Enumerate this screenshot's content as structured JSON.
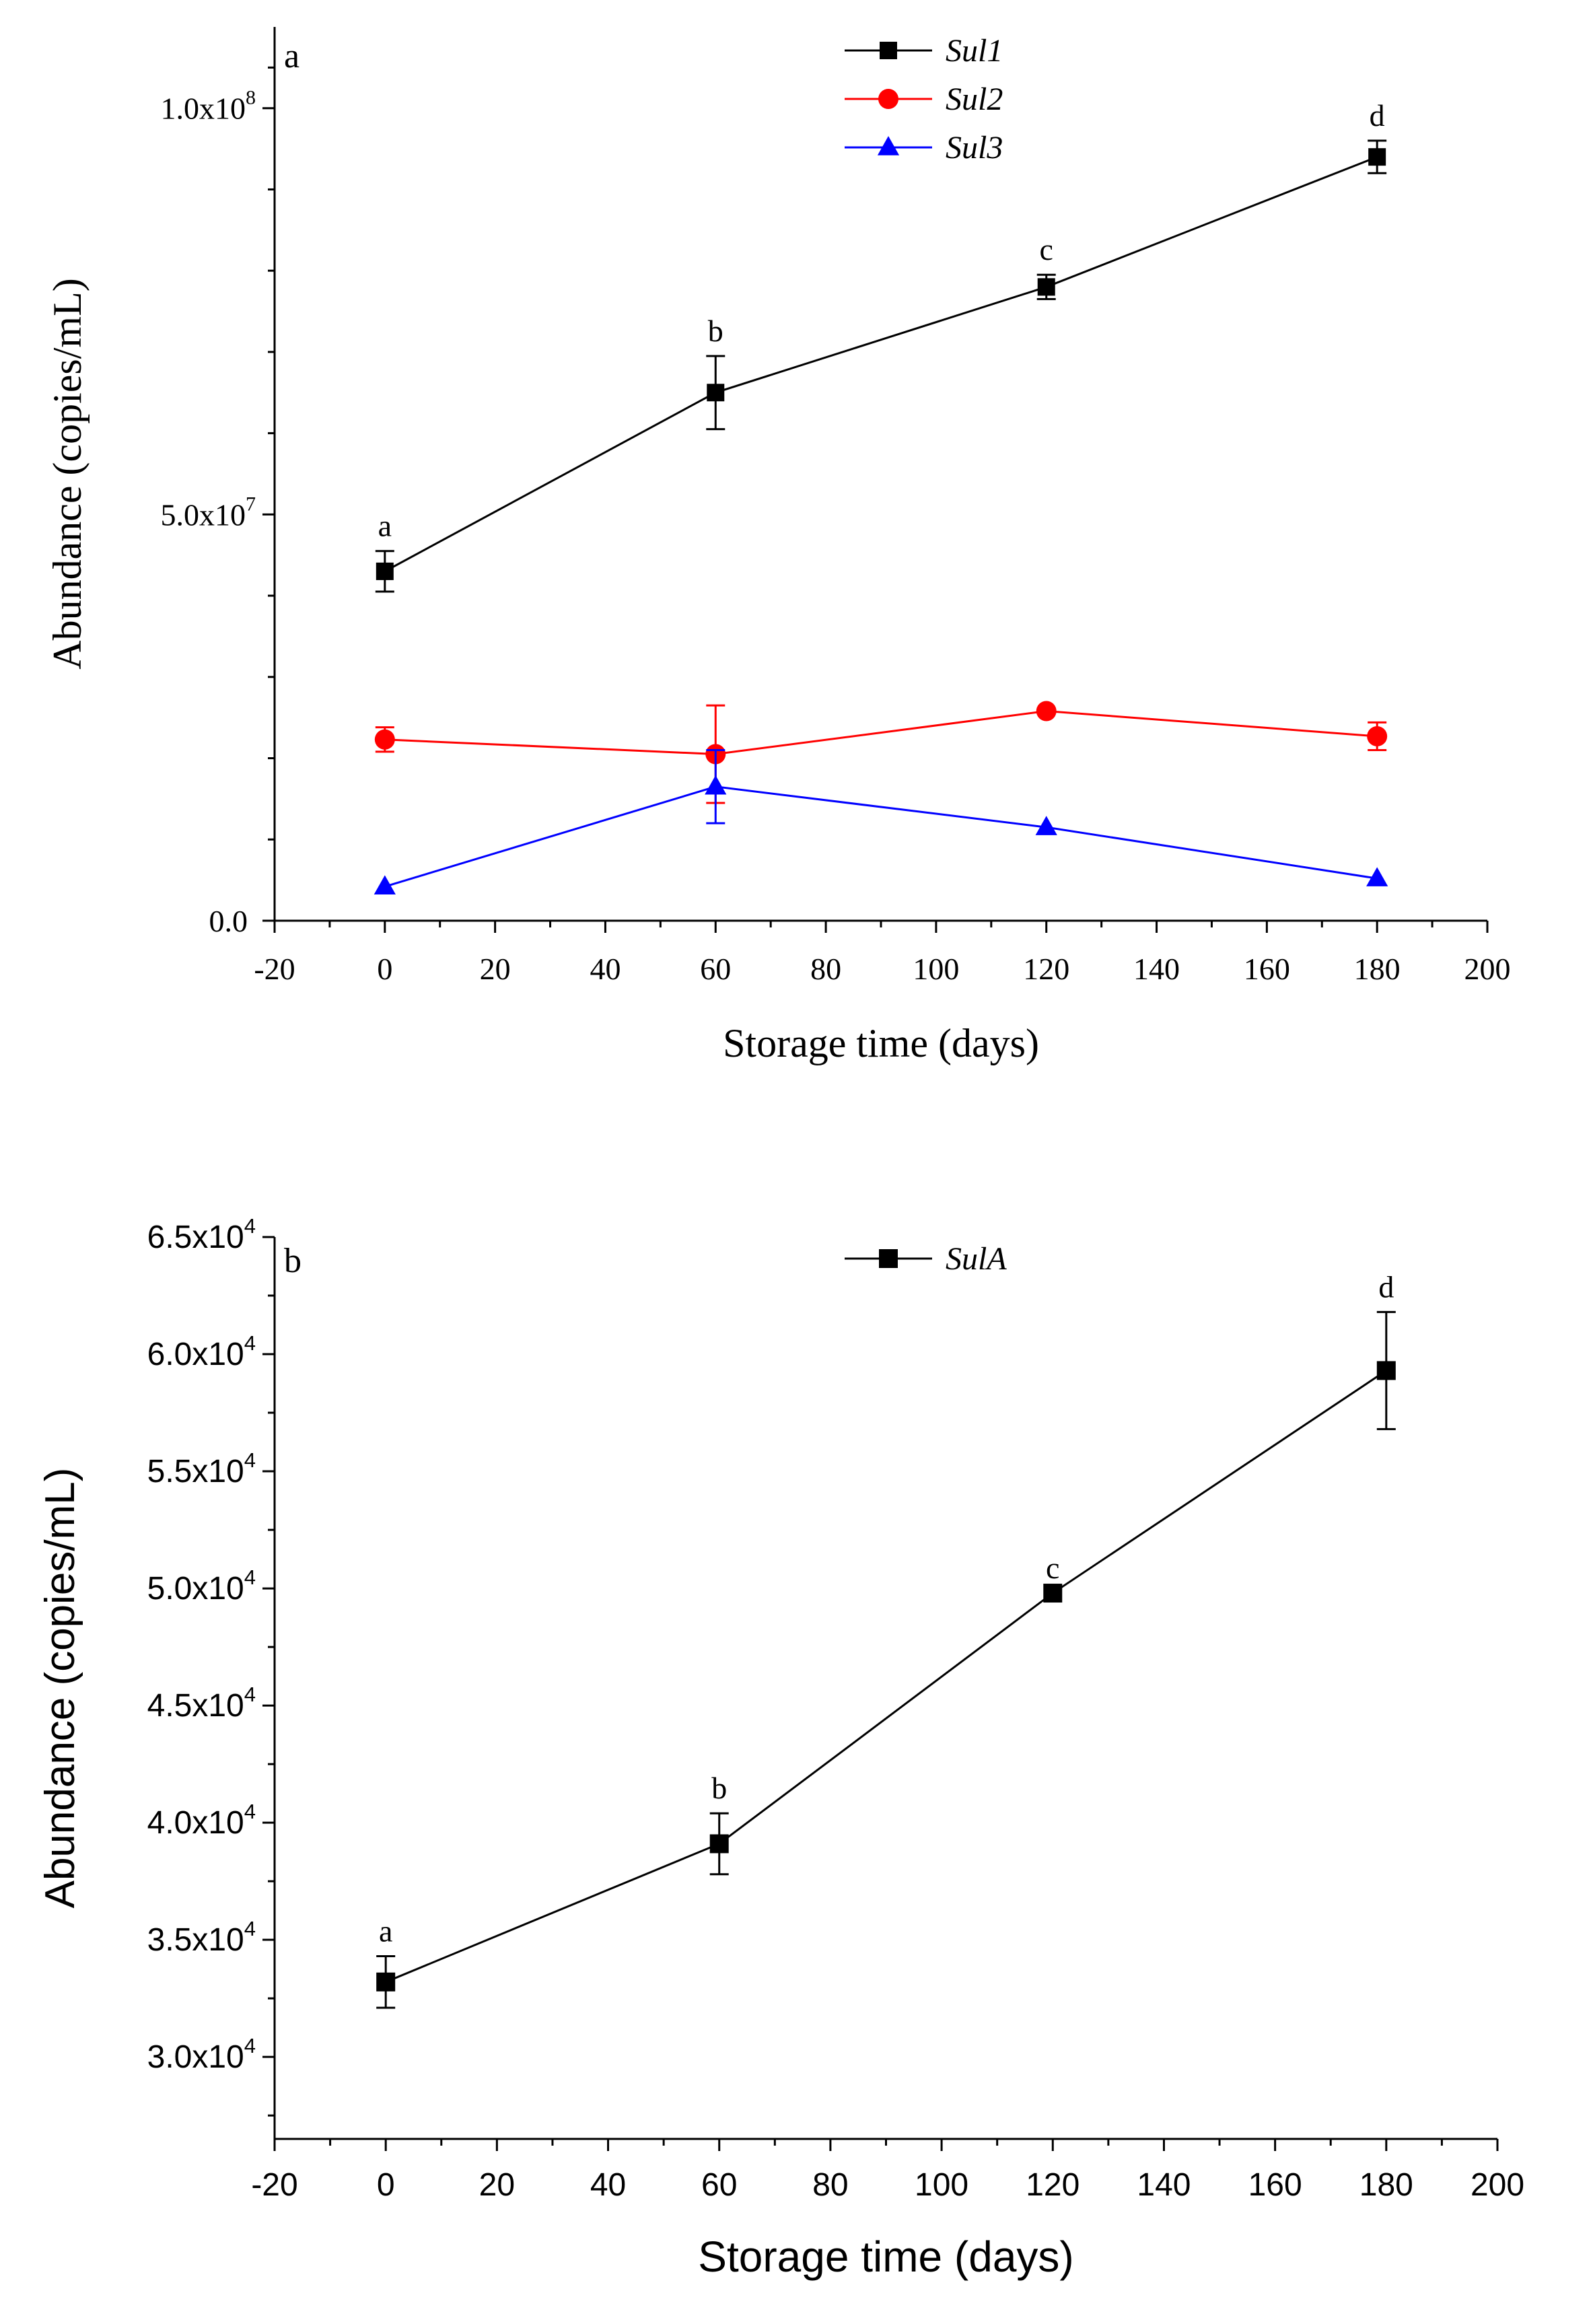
{
  "chart_data": [
    {
      "type": "line",
      "panel_label": "a",
      "xlabel": "Storage time (days)",
      "ylabel": "Abundance (copies/mL)",
      "xlim": [
        -20,
        200
      ],
      "x_ticks": [
        -20,
        0,
        20,
        40,
        60,
        80,
        100,
        120,
        140,
        160,
        180,
        200
      ],
      "ylim": [
        0,
        110000000
      ],
      "y_ticks": [
        {
          "value": 0,
          "label": "0.0",
          "exp": ""
        },
        {
          "value": 50000000,
          "label": "5.0x10",
          "exp": "7"
        },
        {
          "value": 100000000,
          "label": "1.0x10",
          "exp": "8"
        }
      ],
      "x": [
        0,
        60,
        120,
        180
      ],
      "series": [
        {
          "name": "Sul1",
          "color": "#000000",
          "marker": "square",
          "values": [
            43000000,
            65000000,
            78000000,
            94000000
          ],
          "errors": [
            2500000,
            4500000,
            1500000,
            2000000
          ],
          "labels": [
            "a",
            "b",
            "c",
            "d"
          ]
        },
        {
          "name": "Sul2",
          "color": "#ff0000",
          "marker": "circle",
          "values": [
            22300000,
            20500000,
            25800000,
            22700000
          ],
          "errors": [
            1500000,
            6000000,
            0,
            1700000
          ],
          "labels": []
        },
        {
          "name": "Sul3",
          "color": "#0000ff",
          "marker": "triangle",
          "values": [
            4200000,
            16500000,
            11500000,
            5200000
          ],
          "errors": [
            0,
            4500000,
            0,
            0
          ],
          "labels": []
        }
      ]
    },
    {
      "type": "line",
      "panel_label": "b",
      "xlabel": "Storage time (days)",
      "ylabel": "Abundance (copies/mL)",
      "xlim": [
        -20,
        200
      ],
      "x_ticks": [
        -20,
        0,
        20,
        40,
        60,
        80,
        100,
        120,
        140,
        160,
        180,
        200
      ],
      "ylim": [
        26500,
        65000
      ],
      "y_ticks": [
        {
          "value": 30000,
          "label": "3.0x10",
          "exp": "4"
        },
        {
          "value": 35000,
          "label": "3.5x10",
          "exp": "4"
        },
        {
          "value": 40000,
          "label": "4.0x10",
          "exp": "4"
        },
        {
          "value": 45000,
          "label": "4.5x10",
          "exp": "4"
        },
        {
          "value": 50000,
          "label": "5.0x10",
          "exp": "4"
        },
        {
          "value": 55000,
          "label": "5.5x10",
          "exp": "4"
        },
        {
          "value": 60000,
          "label": "6.0x10",
          "exp": "4"
        },
        {
          "value": 65000,
          "label": "6.5x10",
          "exp": "4"
        }
      ],
      "x": [
        0,
        60,
        120,
        180
      ],
      "series": [
        {
          "name": "SulA",
          "color": "#000000",
          "marker": "square",
          "values": [
            33200,
            39100,
            49800,
            59300
          ],
          "errors": [
            1100,
            1300,
            0,
            2500
          ],
          "labels": [
            "a",
            "b",
            "c",
            "d"
          ]
        }
      ]
    }
  ]
}
